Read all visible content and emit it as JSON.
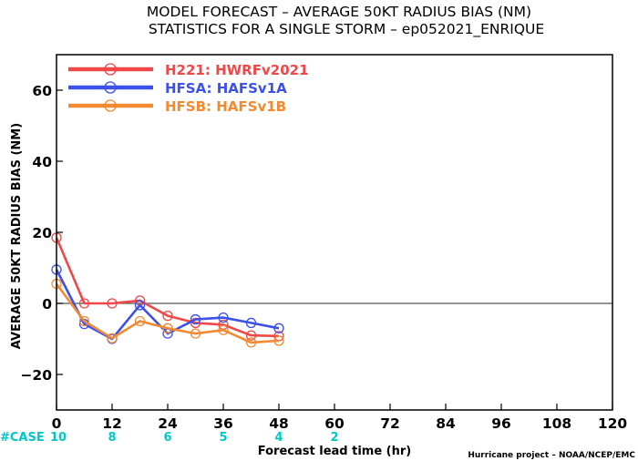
{
  "chart_data": {
    "type": "line",
    "title": "MODEL FORECAST – AVERAGE 50KT RADIUS BIAS (NM)",
    "subtitle": "STATISTICS FOR A SINGLE STORM – ep052021_ENRIQUE",
    "xlabel": "Forecast lead time (hr)",
    "ylabel": "AVERAGE 50KT RADIUS BIAS (NM)",
    "xlim": [
      0,
      120
    ],
    "ylim": [
      -30,
      70
    ],
    "xticks": [
      0,
      12,
      24,
      36,
      48,
      60,
      72,
      84,
      96,
      108,
      120
    ],
    "yticks": [
      -20,
      0,
      20,
      40,
      60
    ],
    "zero_line": true,
    "legend_position": "top-left",
    "series": [
      {
        "name": "H221: HWRFv2021",
        "color": "#f04848",
        "x": [
          0,
          6,
          12,
          18,
          24,
          30,
          36,
          42,
          48
        ],
        "values": [
          18.5,
          0,
          0,
          0.8,
          -3.5,
          -5.5,
          -6,
          -9,
          -9.2
        ]
      },
      {
        "name": "HFSA: HAFSv1A",
        "color": "#3c50ec",
        "x": [
          0,
          6,
          12,
          18,
          24,
          30,
          36,
          42,
          48
        ],
        "values": [
          9.5,
          -5.8,
          -10,
          -0.5,
          -8.5,
          -4.5,
          -4,
          -5.5,
          -7
        ]
      },
      {
        "name": "HFSB: HAFSv1B",
        "color": "#f28a32",
        "x": [
          0,
          6,
          12,
          18,
          24,
          30,
          36,
          42,
          48
        ],
        "values": [
          5.5,
          -5,
          -9.8,
          -5,
          -7,
          -8.5,
          -7.5,
          -11,
          -10.5
        ]
      }
    ],
    "cases_label": "#CASE",
    "cases": [
      {
        "x": 0,
        "label": "10"
      },
      {
        "x": 12,
        "label": "8"
      },
      {
        "x": 24,
        "label": "6"
      },
      {
        "x": 36,
        "label": "5"
      },
      {
        "x": 48,
        "label": "4"
      },
      {
        "x": 60,
        "label": "2"
      }
    ],
    "credit": "Hurricane project – NOAA/NCEP/EMC"
  }
}
